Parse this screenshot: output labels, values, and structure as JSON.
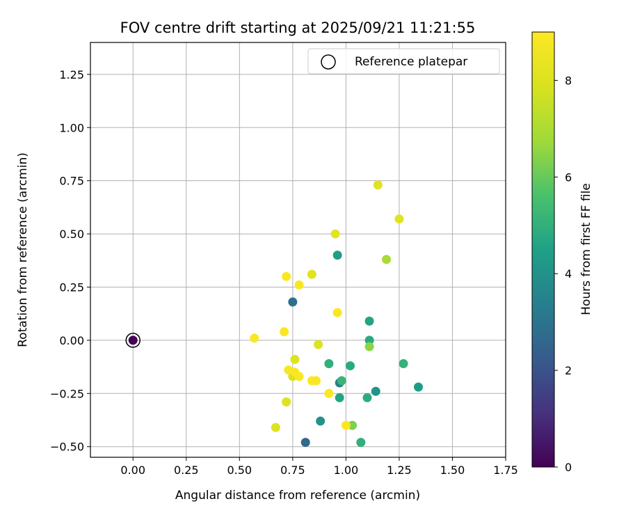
{
  "chart_data": {
    "type": "scatter",
    "title": "FOV centre drift starting at 2025/09/21 11:21:55",
    "xlabel": "Angular distance from reference (arcmin)",
    "ylabel": "Rotation from reference (arcmin)",
    "xlim": [
      -0.2,
      1.75
    ],
    "ylim": [
      -0.55,
      1.4
    ],
    "xticks": [
      0.0,
      0.25,
      0.5,
      0.75,
      1.0,
      1.25,
      1.5,
      1.75
    ],
    "xtick_labels": [
      "0.00",
      "0.25",
      "0.50",
      "0.75",
      "1.00",
      "1.25",
      "1.50",
      "1.75"
    ],
    "yticks": [
      -0.5,
      -0.25,
      0.0,
      0.25,
      0.5,
      0.75,
      1.0,
      1.25
    ],
    "ytick_labels": [
      "−0.50",
      "−0.25",
      "0.00",
      "0.25",
      "0.50",
      "0.75",
      "1.00",
      "1.25"
    ],
    "grid": true,
    "legend": {
      "placement": "top-right",
      "label": "Reference platepar"
    },
    "reference": {
      "x": 0.0,
      "y": 0.0
    },
    "colorbar": {
      "label": "Hours from first FF file",
      "range": [
        0,
        9
      ],
      "ticks": [
        0,
        2,
        4,
        6,
        8
      ],
      "tick_labels": [
        "0",
        "2",
        "4",
        "6",
        "8"
      ],
      "colormap": "viridis"
    },
    "points": [
      {
        "x": 0.0,
        "y": 0.0,
        "h": 0.0
      },
      {
        "x": 0.75,
        "y": 0.18,
        "h": 2.9
      },
      {
        "x": 0.81,
        "y": -0.48,
        "h": 2.7
      },
      {
        "x": 0.97,
        "y": -0.2,
        "h": 3.3
      },
      {
        "x": 0.88,
        "y": -0.38,
        "h": 4.0
      },
      {
        "x": 1.14,
        "y": -0.24,
        "h": 4.1
      },
      {
        "x": 1.34,
        "y": -0.22,
        "h": 4.3
      },
      {
        "x": 0.96,
        "y": 0.4,
        "h": 4.4
      },
      {
        "x": 1.11,
        "y": 0.09,
        "h": 4.6
      },
      {
        "x": 1.11,
        "y": 0.0,
        "h": 4.8
      },
      {
        "x": 0.97,
        "y": -0.27,
        "h": 4.6
      },
      {
        "x": 1.02,
        "y": -0.12,
        "h": 4.8
      },
      {
        "x": 1.1,
        "y": -0.27,
        "h": 4.9
      },
      {
        "x": 1.07,
        "y": -0.48,
        "h": 5.0
      },
      {
        "x": 0.92,
        "y": -0.11,
        "h": 5.0
      },
      {
        "x": 1.27,
        "y": -0.11,
        "h": 5.1
      },
      {
        "x": 0.98,
        "y": -0.19,
        "h": 5.2
      },
      {
        "x": 1.03,
        "y": -0.4,
        "h": 6.3
      },
      {
        "x": 1.11,
        "y": -0.03,
        "h": 6.5
      },
      {
        "x": 1.19,
        "y": 0.38,
        "h": 6.9
      },
      {
        "x": 0.75,
        "y": -0.17,
        "h": 7.9
      },
      {
        "x": 0.76,
        "y": -0.09,
        "h": 8.0
      },
      {
        "x": 0.87,
        "y": -0.02,
        "h": 8.0
      },
      {
        "x": 0.72,
        "y": -0.29,
        "h": 8.0
      },
      {
        "x": 0.67,
        "y": -0.41,
        "h": 8.0
      },
      {
        "x": 0.84,
        "y": 0.31,
        "h": 8.1
      },
      {
        "x": 1.15,
        "y": 0.73,
        "h": 8.1
      },
      {
        "x": 1.25,
        "y": 0.57,
        "h": 8.1
      },
      {
        "x": 0.95,
        "y": 0.5,
        "h": 8.2
      },
      {
        "x": 0.72,
        "y": 0.3,
        "h": 8.9
      },
      {
        "x": 0.78,
        "y": 0.26,
        "h": 8.9
      },
      {
        "x": 0.96,
        "y": 0.13,
        "h": 8.9
      },
      {
        "x": 0.57,
        "y": 0.01,
        "h": 8.9
      },
      {
        "x": 0.71,
        "y": 0.04,
        "h": 8.9
      },
      {
        "x": 0.73,
        "y": -0.14,
        "h": 8.9
      },
      {
        "x": 0.76,
        "y": -0.15,
        "h": 8.9
      },
      {
        "x": 0.78,
        "y": -0.17,
        "h": 8.9
      },
      {
        "x": 0.84,
        "y": -0.19,
        "h": 8.9
      },
      {
        "x": 0.86,
        "y": -0.19,
        "h": 8.9
      },
      {
        "x": 0.92,
        "y": -0.25,
        "h": 8.9
      },
      {
        "x": 1.0,
        "y": -0.4,
        "h": 8.9
      }
    ]
  }
}
